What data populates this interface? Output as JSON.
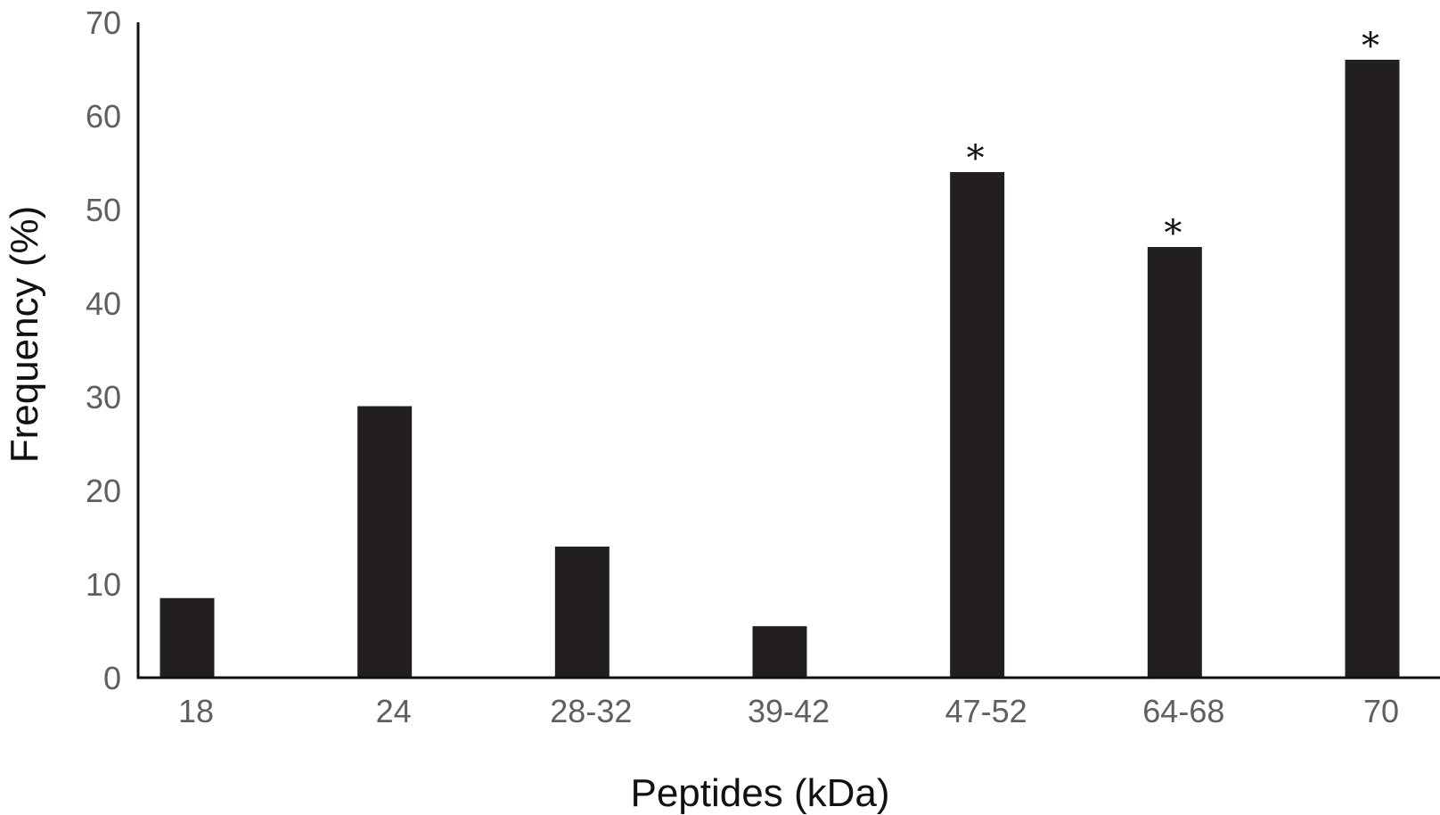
{
  "chart_data": {
    "type": "bar",
    "title": "",
    "xlabel": "Peptides (kDa)",
    "ylabel": "Frequency (%)",
    "categories": [
      "18",
      "24",
      "28-32",
      "39-42",
      "47-52",
      "64-68",
      "70"
    ],
    "values": [
      8.5,
      29,
      14,
      5.5,
      54,
      46,
      66
    ],
    "annotations": [
      "",
      "",
      "",
      "",
      "*",
      "*",
      "*"
    ],
    "ylim": [
      0,
      70
    ],
    "yticks": [
      0,
      10,
      20,
      30,
      40,
      50,
      60,
      70
    ],
    "grid": false,
    "legend": "none",
    "bar_color": "#231f20",
    "axis_color": "#111111",
    "tick_label_color": "#5f5f5f",
    "title_color": "#111111"
  }
}
